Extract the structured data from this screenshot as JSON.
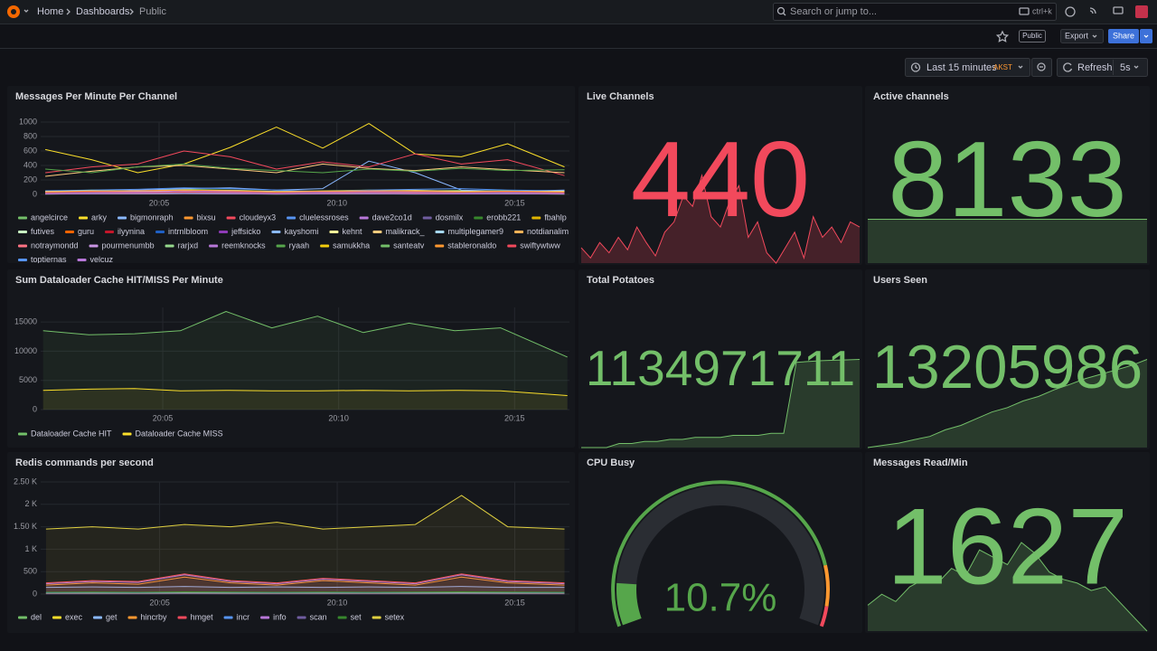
{
  "header": {
    "breadcrumbs": [
      "Home",
      "Dashboards",
      "Public"
    ],
    "search": "Search or jump to...",
    "shortcut": "ctrl+k"
  },
  "toolbar": {
    "tag": "Public",
    "export": "Export",
    "share": "Share"
  },
  "time_controls": {
    "range": "Last 15 minutes",
    "timezone": "AKST",
    "refresh": "Refresh",
    "interval": "5s"
  },
  "panels": [
    {
      "type": "line",
      "title": "Messages Per Minute Per Channel",
      "legend": "bottom",
      "x": [
        1.8,
        3.1,
        4.4,
        5.7,
        7,
        8.3,
        9.6,
        10.9,
        12.2,
        13.5,
        14.8,
        16.4
      ],
      "xlim": [
        1.67,
        16.54
      ],
      "xticks": [
        {
          "value": 5,
          "label": "20:05"
        },
        {
          "value": 10,
          "label": "20:10"
        },
        {
          "value": 15,
          "label": "20:15"
        }
      ],
      "ylim": [
        0,
        1000
      ],
      "yticks": [
        0,
        200,
        400,
        600,
        800,
        1000
      ],
      "series": [
        {
          "name": "angelcirce",
          "color": "#73bf69",
          "values": [
            40,
            60,
            50,
            70,
            60,
            40,
            50,
            60,
            45,
            55,
            50,
            40
          ]
        },
        {
          "name": "arky",
          "color": "#fade2a",
          "values": [
            620,
            480,
            300,
            420,
            650,
            930,
            640,
            980,
            560,
            520,
            700,
            380
          ]
        },
        {
          "name": "bigmonraph",
          "color": "#8ab8ff",
          "values": [
            30,
            40,
            60,
            80,
            90,
            60,
            80,
            460,
            300,
            60,
            40,
            60
          ]
        },
        {
          "name": "bixsu",
          "color": "#ff9830",
          "values": [
            20,
            30,
            25,
            40,
            35,
            20,
            30,
            25,
            30,
            20,
            25,
            30
          ]
        },
        {
          "name": "cloudeyx3",
          "color": "#f2495c",
          "values": [
            300,
            380,
            420,
            600,
            520,
            350,
            450,
            380,
            560,
            420,
            480,
            260
          ]
        },
        {
          "name": "cluelessroses",
          "color": "#5794f2",
          "values": [
            50,
            60,
            70,
            90,
            80,
            60,
            40,
            60,
            70,
            80,
            60,
            50
          ]
        },
        {
          "name": "dave2co1d",
          "color": "#b877d9",
          "values": [
            30,
            35,
            40,
            55,
            45,
            30,
            35,
            40,
            50,
            35,
            40,
            30
          ]
        },
        {
          "name": "dosmilx",
          "color": "#705da0",
          "values": [
            15,
            20,
            25,
            30,
            20,
            15,
            20,
            25,
            20,
            15,
            20,
            15
          ]
        },
        {
          "name": "erobb221",
          "color": "#37872d",
          "values": [
            10,
            15,
            10,
            20,
            15,
            10,
            15,
            10,
            15,
            10,
            15,
            10
          ]
        },
        {
          "name": "fbahlp",
          "color": "#e0b400",
          "values": [
            25,
            30,
            20,
            35,
            30,
            25,
            20,
            30,
            25,
            30,
            20,
            25
          ]
        },
        {
          "name": "futives",
          "color": "#c8f2c2",
          "values": [
            5,
            10,
            8,
            12,
            10,
            5,
            8,
            10,
            6,
            8,
            10,
            5
          ]
        },
        {
          "name": "guru",
          "color": "#fa6400",
          "values": [
            20,
            25,
            30,
            40,
            35,
            20,
            25,
            30,
            35,
            25,
            20,
            30
          ]
        },
        {
          "name": "ilyynina",
          "color": "#c4162a",
          "values": [
            10,
            12,
            15,
            20,
            15,
            10,
            12,
            15,
            10,
            12,
            15,
            10
          ]
        },
        {
          "name": "intrnlbloom",
          "color": "#1f60c4",
          "values": [
            8,
            10,
            12,
            15,
            12,
            8,
            10,
            12,
            8,
            10,
            12,
            8
          ]
        },
        {
          "name": "jeffsicko",
          "color": "#8f3bb8",
          "values": [
            30,
            40,
            50,
            60,
            40,
            30,
            40,
            50,
            40,
            30,
            40,
            30
          ]
        },
        {
          "name": "kayshomi",
          "color": "#8ab8ff",
          "values": [
            12,
            15,
            20,
            25,
            20,
            15,
            12,
            18,
            20,
            15,
            12,
            15
          ]
        },
        {
          "name": "kehnt",
          "color": "#fff899",
          "values": [
            40,
            50,
            45,
            60,
            55,
            40,
            45,
            50,
            55,
            45,
            40,
            45
          ]
        },
        {
          "name": "malikrack_",
          "color": "#ffcb7d",
          "values": [
            250,
            320,
            380,
            400,
            350,
            300,
            420,
            360,
            330,
            380,
            340,
            300
          ]
        },
        {
          "name": "multiplegamer9",
          "color": "#a6d8f0",
          "values": [
            20,
            25,
            30,
            35,
            30,
            20,
            25,
            30,
            25,
            20,
            25,
            20
          ]
        },
        {
          "name": "notdianalim",
          "color": "#ffb357",
          "values": [
            15,
            20,
            18,
            25,
            20,
            15,
            18,
            20,
            15,
            18,
            20,
            15
          ]
        },
        {
          "name": "notraymondd",
          "color": "#ff7383",
          "values": [
            10,
            12,
            10,
            15,
            12,
            10,
            12,
            10,
            12,
            10,
            12,
            10
          ]
        },
        {
          "name": "pourmenumbb",
          "color": "#ca95e5",
          "values": [
            25,
            30,
            35,
            40,
            35,
            25,
            30,
            35,
            30,
            25,
            30,
            25
          ]
        },
        {
          "name": "rarjxd",
          "color": "#96d98d",
          "values": [
            5,
            8,
            6,
            10,
            8,
            5,
            6,
            8,
            5,
            6,
            8,
            5
          ]
        },
        {
          "name": "reemknocks",
          "color": "#b877d9",
          "values": [
            18,
            22,
            25,
            30,
            25,
            18,
            22,
            25,
            20,
            18,
            22,
            18
          ]
        },
        {
          "name": "ryaah",
          "color": "#56a64b",
          "values": [
            350,
            300,
            380,
            420,
            360,
            330,
            300,
            350,
            320,
            360,
            330,
            340
          ]
        },
        {
          "name": "samukkha",
          "color": "#f2cc0c",
          "values": [
            12,
            15,
            18,
            22,
            18,
            12,
            15,
            18,
            15,
            12,
            15,
            12
          ]
        },
        {
          "name": "santeatv",
          "color": "#73bf69",
          "values": [
            8,
            10,
            12,
            14,
            12,
            8,
            10,
            12,
            10,
            8,
            10,
            8
          ]
        },
        {
          "name": "stableronaldo",
          "color": "#ff9830",
          "values": [
            35,
            45,
            50,
            60,
            50,
            35,
            45,
            50,
            45,
            35,
            45,
            35
          ]
        },
        {
          "name": "swiftywtww",
          "color": "#f2495c",
          "values": [
            20,
            25,
            22,
            30,
            25,
            20,
            22,
            25,
            20,
            22,
            25,
            20
          ]
        },
        {
          "name": "toptiernas",
          "color": "#5794f2",
          "values": [
            10,
            14,
            12,
            18,
            14,
            10,
            12,
            14,
            10,
            12,
            14,
            10
          ]
        },
        {
          "name": "velcuz",
          "color": "#b877d9",
          "values": [
            6,
            8,
            10,
            12,
            10,
            6,
            8,
            10,
            8,
            6,
            8,
            6
          ]
        }
      ]
    },
    {
      "type": "stat",
      "title": "Live Channels",
      "value": 440,
      "color": "#f2495c",
      "sparkline": [
        420,
        410,
        425,
        415,
        430,
        418,
        440,
        425,
        412,
        435,
        445,
        470,
        460,
        490,
        450,
        440,
        465,
        480,
        430,
        445,
        415,
        405,
        420,
        435,
        410,
        450,
        430,
        440,
        425,
        445,
        440
      ]
    },
    {
      "type": "stat",
      "title": "Active channels",
      "value": 8133,
      "color": "#73bf69",
      "sparkline": [
        8133,
        8133,
        8133,
        8133,
        8133,
        8133
      ]
    },
    {
      "type": "line",
      "title": "Sum Dataloader Cache HIT/MISS Per Minute",
      "legend": "bottom",
      "area": true,
      "x": [
        1.6,
        2.9,
        4.2,
        5.5,
        6.8,
        8.1,
        9.4,
        10.7,
        12,
        13.3,
        14.6,
        16.5
      ],
      "xlim": [
        1.53,
        16.56
      ],
      "xticks": [
        {
          "value": 5,
          "label": "20:05"
        },
        {
          "value": 10,
          "label": "20:10"
        },
        {
          "value": 15,
          "label": "20:15"
        }
      ],
      "ylim": [
        0,
        17500
      ],
      "yticks": [
        0,
        5000,
        10000,
        15000
      ],
      "series": [
        {
          "name": "Dataloader Cache HIT",
          "color": "#73bf69",
          "values": [
            13500,
            12800,
            13000,
            13500,
            16800,
            14000,
            16000,
            13200,
            14800,
            13500,
            14000,
            9000
          ]
        },
        {
          "name": "Dataloader Cache MISS",
          "color": "#fade2a",
          "values": [
            3300,
            3500,
            3600,
            3200,
            3300,
            3200,
            3200,
            3300,
            3200,
            3300,
            3200,
            2400
          ]
        }
      ]
    },
    {
      "type": "stat",
      "title": "Total Potatoes",
      "value": 1134971711,
      "color": "#73bf69",
      "sparkline": [
        1134950000,
        1134950000,
        1134950000,
        1134951000,
        1134951000,
        1134951500,
        1134951500,
        1134952000,
        1134952000,
        1134952500,
        1134952500,
        1134952500,
        1134953000,
        1134953000,
        1134953000,
        1134953500,
        1134953500,
        1134971000,
        1134971200,
        1134971400,
        1134971500,
        1134971600,
        1134971711
      ]
    },
    {
      "type": "stat",
      "title": "Users Seen",
      "value": 13205986,
      "color": "#73bf69",
      "sparkline": [
        13204000,
        13204050,
        13204100,
        13204180,
        13204250,
        13204400,
        13204500,
        13204650,
        13204800,
        13204900,
        13205050,
        13205150,
        13205300,
        13205420,
        13205550,
        13205650,
        13205750,
        13205850,
        13205986
      ]
    },
    {
      "type": "line",
      "title": "Redis commands per second",
      "legend": "bottom",
      "area": true,
      "x": [
        1.8,
        3.1,
        4.4,
        5.7,
        7,
        8.3,
        9.6,
        10.9,
        12.2,
        13.5,
        14.8,
        16.4
      ],
      "xlim": [
        1.65,
        16.54
      ],
      "xticks": [
        {
          "value": 5,
          "label": "20:05"
        },
        {
          "value": 10,
          "label": "20:10"
        },
        {
          "value": 15,
          "label": "20:15"
        }
      ],
      "ylim": [
        0,
        2500
      ],
      "yticks": [
        0,
        500,
        {
          "value": 1000,
          "label": "1 K"
        },
        {
          "value": 1500,
          "label": "1.50 K"
        },
        {
          "value": 2000,
          "label": "2 K"
        },
        {
          "value": 2500,
          "label": "2.50 K"
        }
      ],
      "series": [
        {
          "name": "del",
          "color": "#73bf69",
          "values": [
            20,
            25,
            20,
            30,
            25,
            20,
            25,
            20,
            25,
            30,
            25,
            20
          ]
        },
        {
          "name": "exec",
          "color": "#fade2a",
          "values": [
            10,
            12,
            10,
            15,
            12,
            10,
            12,
            10,
            12,
            15,
            12,
            10
          ]
        },
        {
          "name": "get",
          "color": "#8ab8ff",
          "values": [
            150,
            160,
            150,
            170,
            150,
            160,
            150,
            160,
            150,
            170,
            150,
            150
          ]
        },
        {
          "name": "hincrby",
          "color": "#ff9830",
          "values": [
            200,
            250,
            220,
            380,
            250,
            200,
            300,
            250,
            200,
            380,
            250,
            200
          ]
        },
        {
          "name": "hmget",
          "color": "#f2495c",
          "values": [
            250,
            300,
            280,
            450,
            300,
            250,
            350,
            300,
            250,
            450,
            300,
            250
          ]
        },
        {
          "name": "incr",
          "color": "#5794f2",
          "values": [
            30,
            35,
            30,
            40,
            35,
            30,
            35,
            30,
            35,
            40,
            35,
            30
          ]
        },
        {
          "name": "info",
          "color": "#b877d9",
          "values": [
            230,
            280,
            260,
            430,
            280,
            230,
            330,
            280,
            230,
            430,
            280,
            230
          ]
        },
        {
          "name": "scan",
          "color": "#705da0",
          "values": [
            5,
            6,
            5,
            8,
            6,
            5,
            6,
            5,
            6,
            8,
            6,
            5
          ]
        },
        {
          "name": "set",
          "color": "#37872d",
          "values": [
            40,
            45,
            40,
            50,
            45,
            40,
            45,
            40,
            45,
            50,
            45,
            40
          ]
        },
        {
          "name": "setex",
          "color": "#e0d040",
          "values": [
            1450,
            1500,
            1450,
            1550,
            1500,
            1600,
            1450,
            1500,
            1550,
            2200,
            1500,
            1450
          ]
        }
      ]
    },
    {
      "type": "gauge",
      "title": "CPU Busy",
      "value": 10.7,
      "value_label": "10.7%",
      "min": 0,
      "max": 100,
      "color": "#56a64b",
      "thresholds": [
        {
          "value": 0,
          "color": "#56a64b"
        },
        {
          "value": 85,
          "color": "#ff9830"
        },
        {
          "value": 95,
          "color": "#f2495c"
        }
      ]
    },
    {
      "type": "stat",
      "title": "Messages Read/Min",
      "value": 1627,
      "color": "#73bf69",
      "sparkline": [
        1550,
        1580,
        1560,
        1600,
        1620,
        1610,
        1650,
        1630,
        1700,
        1680,
        1660,
        1720,
        1690,
        1640,
        1620,
        1610,
        1590,
        1600,
        1560,
        1520,
        1480
      ]
    }
  ]
}
